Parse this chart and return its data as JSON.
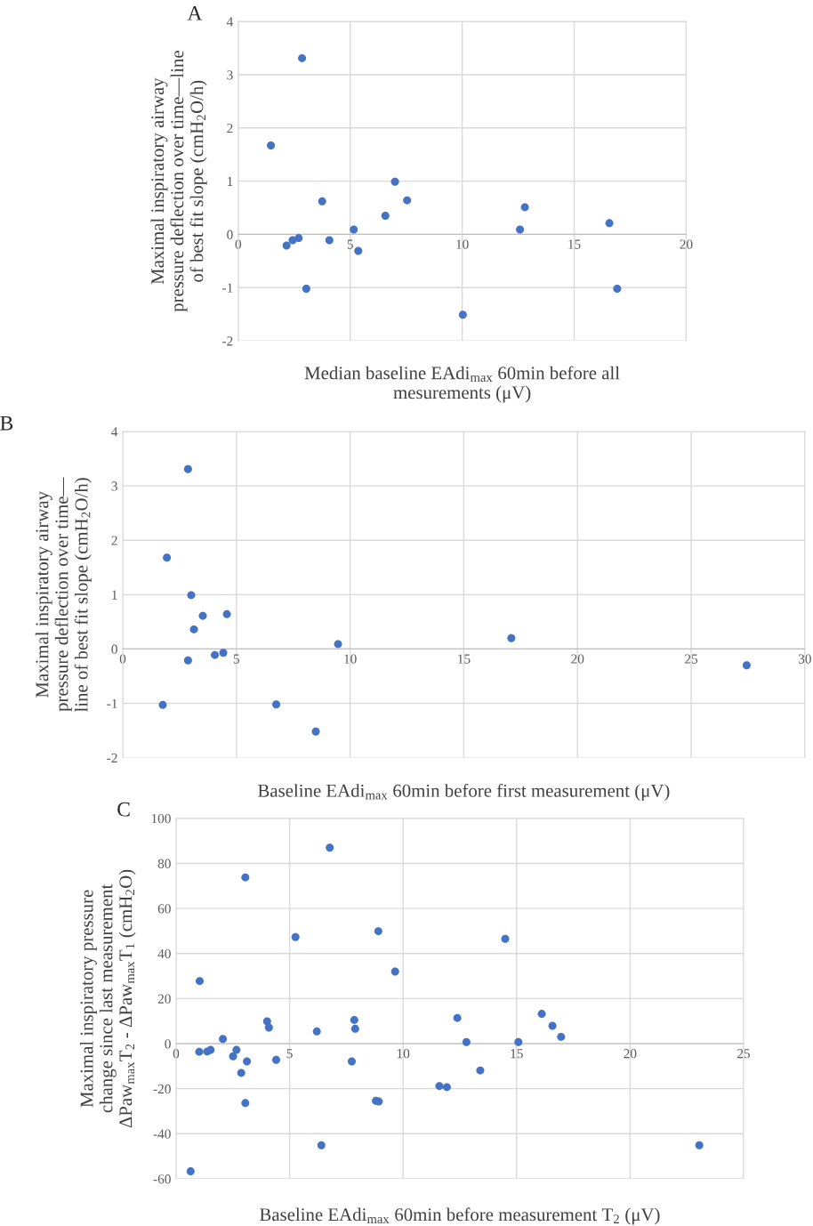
{
  "chart_data": [
    {
      "type": "scatter",
      "title": "A",
      "ylabel": "Maximal inspiratory airway\npressure deflection over time—line\nof best fit slope (cmH$_{2}$O/h)",
      "xlabel": "Median baseline EAdi$_{max}$ 60min before all\nmesurements (μV)",
      "xlim": [
        0,
        20
      ],
      "xticks": [
        0,
        5,
        10,
        15,
        20
      ],
      "ylim": [
        -2,
        4
      ],
      "yticks": [
        -2,
        -1,
        0,
        1,
        2,
        3,
        4
      ],
      "grid": true,
      "marker": "circle",
      "series": [
        {
          "color": "#4472c4",
          "x": [
            1.46,
            2.85,
            2.16,
            2.43,
            2.7,
            3.04,
            3.75,
            4.07,
            5.16,
            5.36,
            6.57,
            7.0,
            7.54,
            10.03,
            12.58,
            12.8,
            16.57,
            16.92
          ],
          "values": [
            1.67,
            3.31,
            -0.21,
            -0.11,
            -0.07,
            -1.02,
            0.62,
            -0.11,
            0.09,
            -0.31,
            0.35,
            0.99,
            0.64,
            -1.51,
            0.09,
            0.51,
            0.21,
            -1.02
          ]
        }
      ]
    },
    {
      "type": "scatter",
      "title": "B",
      "ylabel": "Maximal inspiratory airway\npressure deflection over time—\nline of best fit slope (cmH$_{2}$O/h)",
      "xlabel": "Baseline EAdi$_{max}$ 60min before first measurement (μV)",
      "xlim": [
        0,
        30
      ],
      "xticks": [
        0,
        5,
        10,
        15,
        20,
        25,
        30
      ],
      "ylim": [
        -2,
        4
      ],
      "yticks": [
        -2,
        -1,
        0,
        1,
        2,
        3,
        4
      ],
      "grid": true,
      "marker": "circle",
      "series": [
        {
          "color": "#4472c4",
          "x": [
            2.87,
            1.94,
            3.01,
            3.52,
            4.58,
            3.13,
            9.47,
            17.09,
            2.87,
            4.05,
            4.42,
            27.44,
            1.76,
            6.75,
            8.49
          ],
          "values": [
            3.31,
            1.68,
            0.99,
            0.61,
            0.64,
            0.36,
            0.09,
            0.2,
            -0.21,
            -0.11,
            -0.07,
            -0.3,
            -1.03,
            -1.02,
            -1.52
          ]
        }
      ]
    },
    {
      "type": "scatter",
      "title": "C",
      "ylabel": "Maximal inspiratory pressure\nchange since last measurement\nΔPaw$_{max}$T$_{2}$ - ΔPaw$_{max}$T$_{1}$ (cmH$_{2}$O)",
      "xlabel": "Baseline EAdi$_{max}$ 60min before measurement T$_{2}$ (μV)",
      "xlim": [
        0,
        25
      ],
      "xticks": [
        0,
        5,
        10,
        15,
        20,
        25
      ],
      "ylim": [
        -60,
        100
      ],
      "yticks": [
        -60,
        -40,
        -20,
        0,
        20,
        40,
        60,
        80,
        100
      ],
      "grid": true,
      "marker": "circle",
      "series": [
        {
          "color": "#4472c4",
          "x": [
            6.77,
            3.05,
            5.26,
            8.91,
            14.5,
            9.65,
            1.04,
            4.01,
            4.09,
            6.2,
            7.85,
            7.89,
            12.39,
            12.79,
            15.08,
            16.11,
            16.58,
            16.96,
            2.06,
            1.02,
            1.37,
            1.52,
            2.66,
            2.51,
            3.12,
            2.87,
            4.41,
            7.74,
            13.4,
            11.6,
            11.93,
            8.8,
            8.93,
            3.05,
            6.4,
            23.05,
            0.64
          ],
          "values": [
            87.0,
            73.8,
            47.3,
            49.9,
            46.5,
            32.0,
            27.8,
            9.9,
            7.1,
            5.4,
            10.5,
            6.6,
            11.4,
            0.7,
            0.7,
            13.2,
            7.9,
            3.0,
            2.1,
            -3.6,
            -3.5,
            -2.8,
            -2.8,
            -5.6,
            -7.9,
            -13.0,
            -7.2,
            -7.9,
            -11.9,
            -18.8,
            -19.3,
            -25.4,
            -25.7,
            -26.4,
            -45.1,
            -45.1,
            -56.7
          ]
        }
      ]
    }
  ]
}
